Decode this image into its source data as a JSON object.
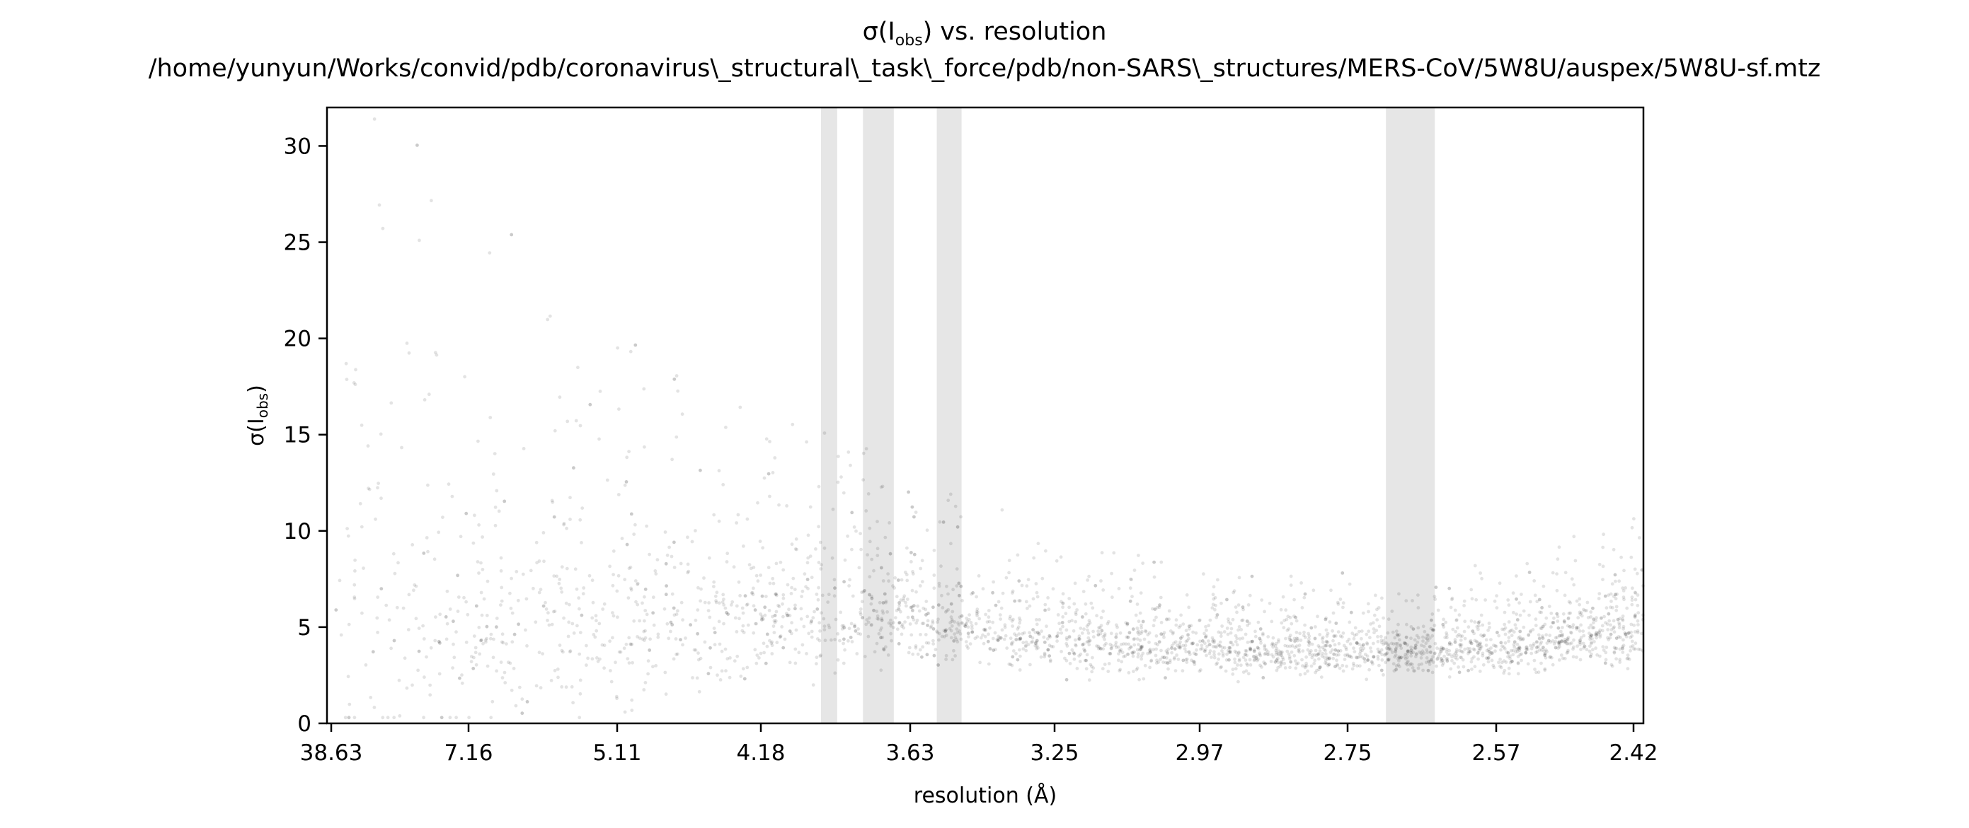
{
  "chart_data": {
    "type": "scatter",
    "title": "σ(I",
    "title_sub": "obs",
    "title_end": ") vs. resolution",
    "subtitle": "/home/yunyun/Works/convid/pdb/coronavirus\\_structural\\_task\\_force/pdb/non-SARS\\_structures/MERS-CoV/5W8U/auspex/5W8U-sf.mtz",
    "xlabel": "resolution (Å)",
    "ylabel": "σ(I",
    "ylabel_sub": "obs",
    "ylabel_end": ")",
    "x_scale": "1/d^2",
    "xlim": [
      38.63,
      2.42
    ],
    "ylim": [
      0,
      32
    ],
    "x_ticks": [
      38.63,
      7.16,
      5.11,
      4.18,
      3.63,
      3.25,
      2.97,
      2.75,
      2.57,
      2.42
    ],
    "x_tick_labels": [
      "38.63",
      "7.16",
      "5.11",
      "4.18",
      "3.63",
      "3.25",
      "2.97",
      "2.75",
      "2.57",
      "2.42"
    ],
    "y_ticks": [
      0,
      5,
      10,
      15,
      20,
      25,
      30
    ],
    "y_tick_labels": [
      "0",
      "5",
      "10",
      "15",
      "20",
      "25",
      "30"
    ],
    "ice_ring_bands": [
      {
        "d_max": 3.93,
        "d_min": 3.87
      },
      {
        "d_max": 3.78,
        "d_min": 3.68
      },
      {
        "d_max": 3.55,
        "d_min": 3.48
      },
      {
        "d_max": 2.7,
        "d_min": 2.64
      }
    ],
    "series": [
      {
        "point_color": "#000000",
        "point_alpha": 0.05,
        "trend": [
          {
            "d": 38.63,
            "median": 4.5,
            "spread": 14
          },
          {
            "d": 10.0,
            "median": 4.3,
            "spread": 13
          },
          {
            "d": 7.16,
            "median": 4.2,
            "spread": 11
          },
          {
            "d": 5.11,
            "median": 4.0,
            "spread": 9
          },
          {
            "d": 4.18,
            "median": 4.8,
            "spread": 6
          },
          {
            "d": 3.63,
            "median": 5.0,
            "spread": 4.5
          },
          {
            "d": 3.25,
            "median": 4.1,
            "spread": 3
          },
          {
            "d": 2.97,
            "median": 3.6,
            "spread": 2.5
          },
          {
            "d": 2.75,
            "median": 3.5,
            "spread": 2.2
          },
          {
            "d": 2.57,
            "median": 3.6,
            "spread": 2.4
          },
          {
            "d": 2.42,
            "median": 4.6,
            "spread": 3.2
          }
        ]
      }
    ],
    "band_color": "#e6e6e6",
    "grid": false
  }
}
